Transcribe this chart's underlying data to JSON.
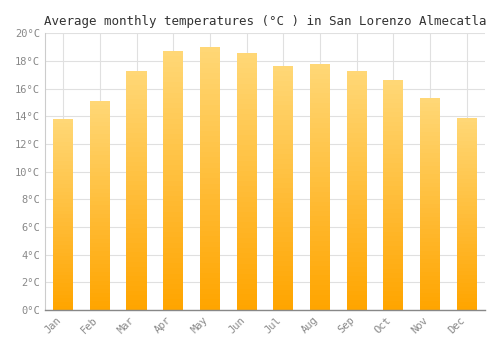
{
  "months": [
    "Jan",
    "Feb",
    "Mar",
    "Apr",
    "May",
    "Jun",
    "Jul",
    "Aug",
    "Sep",
    "Oct",
    "Nov",
    "Dec"
  ],
  "values": [
    13.8,
    15.1,
    17.3,
    18.7,
    19.0,
    18.6,
    17.6,
    17.8,
    17.3,
    16.6,
    15.3,
    13.9
  ],
  "bar_color_bottom": "#FFA500",
  "bar_color_top": "#FFD878",
  "title": "Average monthly temperatures (°C ) in San Lorenzo Almecatla",
  "ylim": [
    0,
    20
  ],
  "ytick_step": 2,
  "background_color": "#FFFFFF",
  "grid_color": "#E0E0E0",
  "title_fontsize": 9,
  "tick_fontsize": 7.5,
  "tick_color": "#888888",
  "font_family": "monospace",
  "bar_width": 0.55,
  "n_grad": 50
}
